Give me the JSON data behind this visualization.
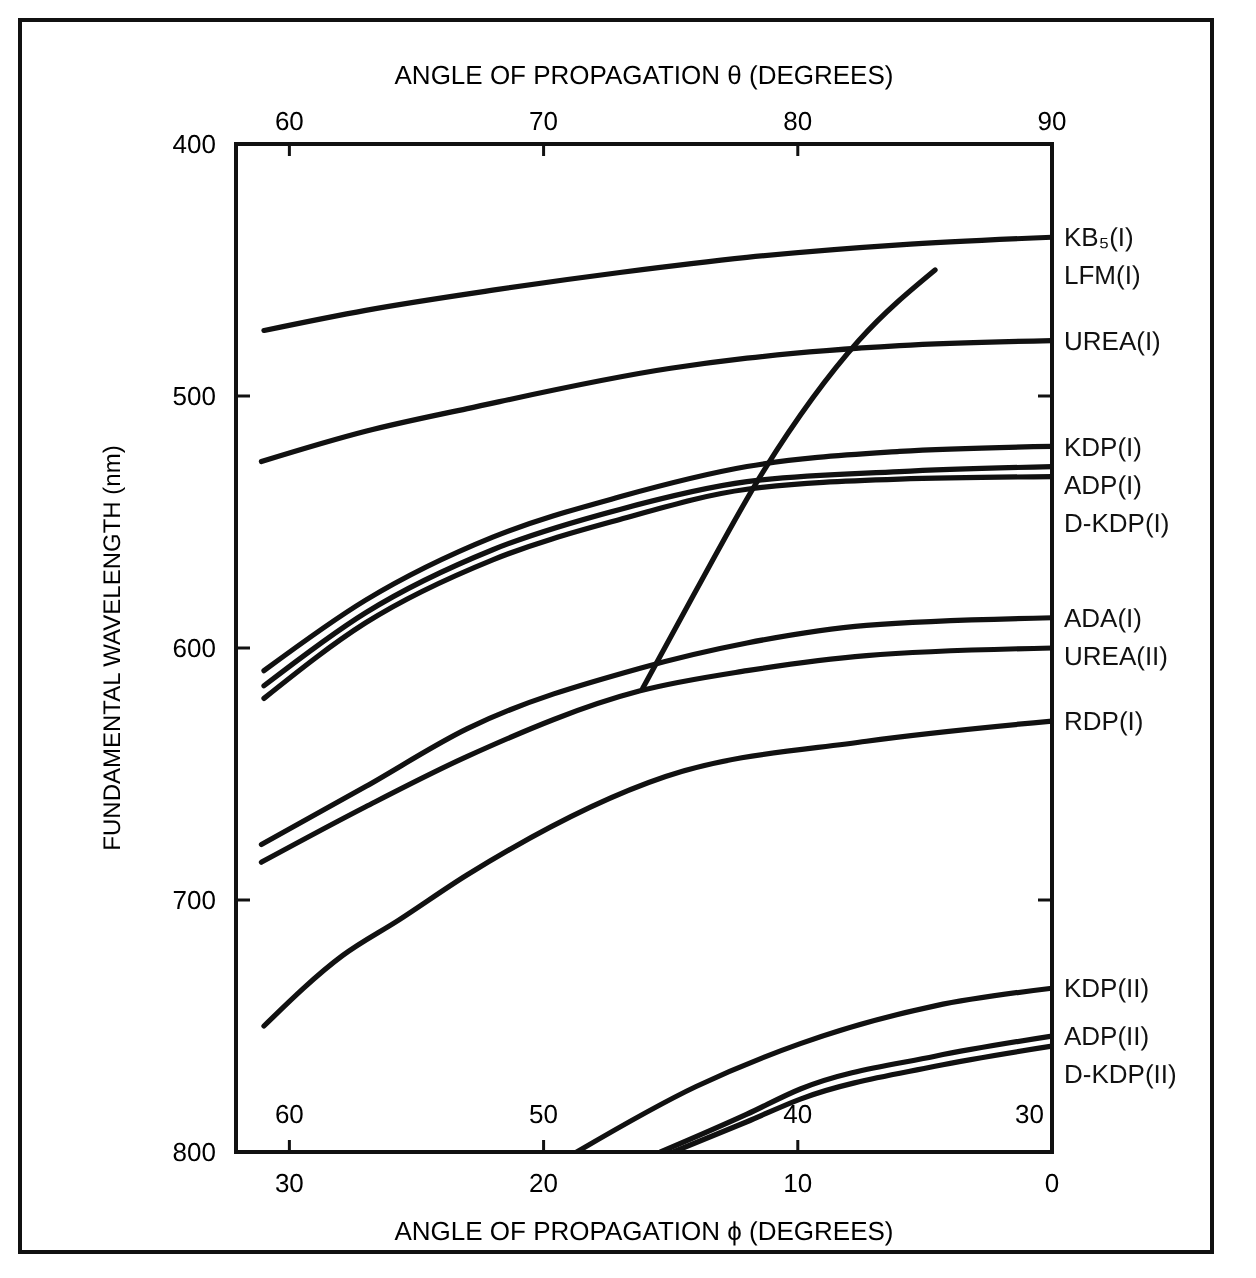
{
  "chart_data": {
    "type": "line",
    "xlabel": "ANGLE OF PROPAGATION ϕ (DEGREES)",
    "x2label": "ANGLE OF PROPAGATION θ (DEGREES)",
    "ylabel": "FUNDAMENTAL WAVELENGTH (nm)",
    "xlim": [
      32.1,
      0
    ],
    "xticks": [
      30,
      20,
      10,
      0
    ],
    "x2lim": [
      57.9,
      90
    ],
    "x2ticks": [
      60,
      70,
      80,
      90
    ],
    "annotations": [
      "60",
      "50",
      "40",
      "30"
    ],
    "ylim": [
      800,
      400
    ],
    "yticks": [
      400,
      500,
      600,
      700,
      800
    ],
    "grid": false,
    "marker": "none",
    "line_style": "solid",
    "series": [
      {
        "name": "KB₅(I)",
        "color": "#111111",
        "x": [
          31,
          27,
          22,
          17,
          12,
          6,
          0
        ],
        "values": [
          474,
          466,
          458,
          451,
          445,
          440,
          437
        ]
      },
      {
        "name": "LFM(I)",
        "color": "#111111",
        "x": [
          16.1,
          14.1,
          11.3,
          7.6,
          4.6
        ],
        "values": [
          616,
          579,
          529,
          478,
          450
        ]
      },
      {
        "name": "UREA(I)",
        "color": "#111111",
        "x": [
          31.1,
          27,
          23,
          15,
          12,
          6,
          0
        ],
        "values": [
          526,
          514,
          505,
          489,
          485,
          480,
          478
        ]
      },
      {
        "name": "KDP(I)",
        "color": "#111111",
        "x": [
          31,
          27,
          22,
          17,
          12,
          6,
          0
        ],
        "values": [
          609,
          581,
          556,
          540,
          528,
          522,
          520
        ]
      },
      {
        "name": "ADP(I)",
        "color": "#111111",
        "x": [
          31,
          27,
          22,
          17,
          12,
          6,
          0
        ],
        "values": [
          615,
          586,
          561,
          545,
          534,
          530,
          528
        ]
      },
      {
        "name": "D-KDP(I)",
        "color": "#111111",
        "x": [
          31,
          27,
          22,
          17,
          12,
          6,
          0
        ],
        "values": [
          620,
          590,
          565,
          549,
          537,
          533,
          532
        ]
      },
      {
        "name": "ADA(I)",
        "color": "#111111",
        "x": [
          31.1,
          27,
          23,
          16.2,
          12,
          7.3,
          0
        ],
        "values": [
          678,
          655,
          632,
          608,
          598,
          591,
          588
        ]
      },
      {
        "name": "UREA(II)",
        "color": "#111111",
        "x": [
          31.1,
          27,
          23,
          16.2,
          12,
          7.3,
          0
        ],
        "values": [
          685,
          663,
          643,
          617,
          609,
          603,
          600
        ]
      },
      {
        "name": "RDP(I)",
        "color": "#111111",
        "x": [
          31,
          27.9,
          25.7,
          23,
          15.2,
          7.3,
          0
        ],
        "values": [
          750,
          722,
          708,
          690,
          651,
          637,
          629
        ]
      },
      {
        "name": "KDP(II)",
        "color": "#111111",
        "x": [
          18.7,
          14,
          9.9,
          4.6,
          0
        ],
        "values": [
          800,
          774,
          757,
          742,
          735
        ]
      },
      {
        "name": "ADP(II)",
        "color": "#111111",
        "x": [
          15.4,
          12,
          9.9,
          4.6,
          0
        ],
        "values": [
          800,
          785,
          775,
          762,
          754
        ]
      },
      {
        "name": "D-KDP(II)",
        "color": "#111111",
        "x": [
          14.9,
          12,
          9.9,
          4.6,
          0
        ],
        "values": [
          800,
          788,
          779,
          766,
          758
        ]
      }
    ]
  }
}
